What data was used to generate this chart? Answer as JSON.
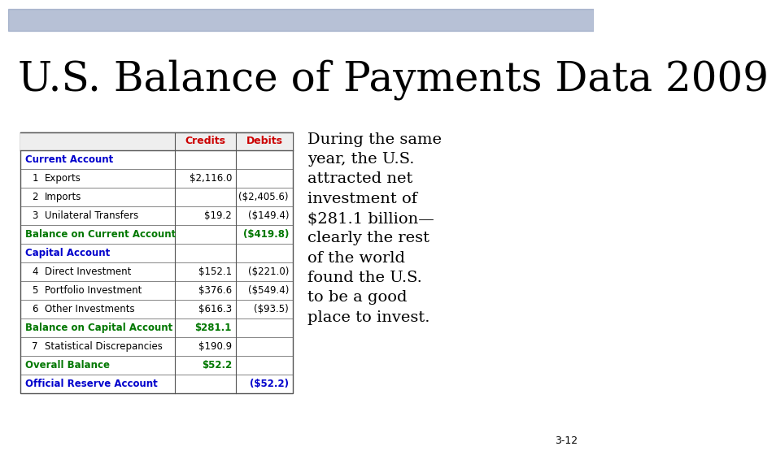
{
  "title": "U.S. Balance of Payments Data 2009",
  "title_fontsize": 36,
  "title_color": "#000000",
  "background_color": "#ffffff",
  "header_bar_top_color": "#2a3f6a",
  "header_bar_bot_color": "#c8bfaf",
  "footer_bar_color": "#b8a898",
  "slide_number": "3-12",
  "text_block": "During the same\nyear, the U.S.\nattracted net\ninvestment of\n$281.1 billion—\nclearly the rest\nof the world\nfound the U.S.\nto be a good\nplace to invest.",
  "text_block_fontsize": 14,
  "col_headers": [
    "Credits",
    "Debits"
  ],
  "col_header_color": "#cc0000",
  "table_rows": [
    {
      "num": "",
      "label": "Current Account",
      "credits": "",
      "debits": "",
      "style": "section"
    },
    {
      "num": "1",
      "label": "Exports",
      "credits": "$2,116.0",
      "debits": "",
      "style": "normal"
    },
    {
      "num": "2",
      "label": "Imports",
      "credits": "",
      "debits": "($2,405.6)",
      "style": "normal"
    },
    {
      "num": "3",
      "label": "Unilateral Transfers",
      "credits": "$19.2",
      "debits": "($149.4)",
      "style": "normal"
    },
    {
      "num": "",
      "label": "Balance on Current Account",
      "credits": "",
      "debits": "($419.8)",
      "style": "bold_green"
    },
    {
      "num": "",
      "label": "Capital Account",
      "credits": "",
      "debits": "",
      "style": "section"
    },
    {
      "num": "4",
      "label": "Direct Investment",
      "credits": "$152.1",
      "debits": "($221.0)",
      "style": "normal"
    },
    {
      "num": "5",
      "label": "Portfolio Investment",
      "credits": "$376.6",
      "debits": "($549.4)",
      "style": "normal"
    },
    {
      "num": "6",
      "label": "Other Investments",
      "credits": "$616.3",
      "debits": "($93.5)",
      "style": "normal"
    },
    {
      "num": "",
      "label": "Balance on Capital Account",
      "credits": "$281.1",
      "debits": "",
      "style": "bold_green"
    },
    {
      "num": "7",
      "label": "Statistical Discrepancies",
      "credits": "$190.9",
      "debits": "",
      "style": "normal"
    },
    {
      "num": "",
      "label": "Overall Balance",
      "credits": "$52.2",
      "debits": "",
      "style": "bold_green"
    },
    {
      "num": "",
      "label": "Official Reserve Account",
      "credits": "",
      "debits": "($52.2)",
      "style": "section"
    }
  ],
  "section_color": "#0000cc",
  "bold_green_color": "#007700",
  "normal_color": "#000000",
  "table_border_color": "#555555"
}
